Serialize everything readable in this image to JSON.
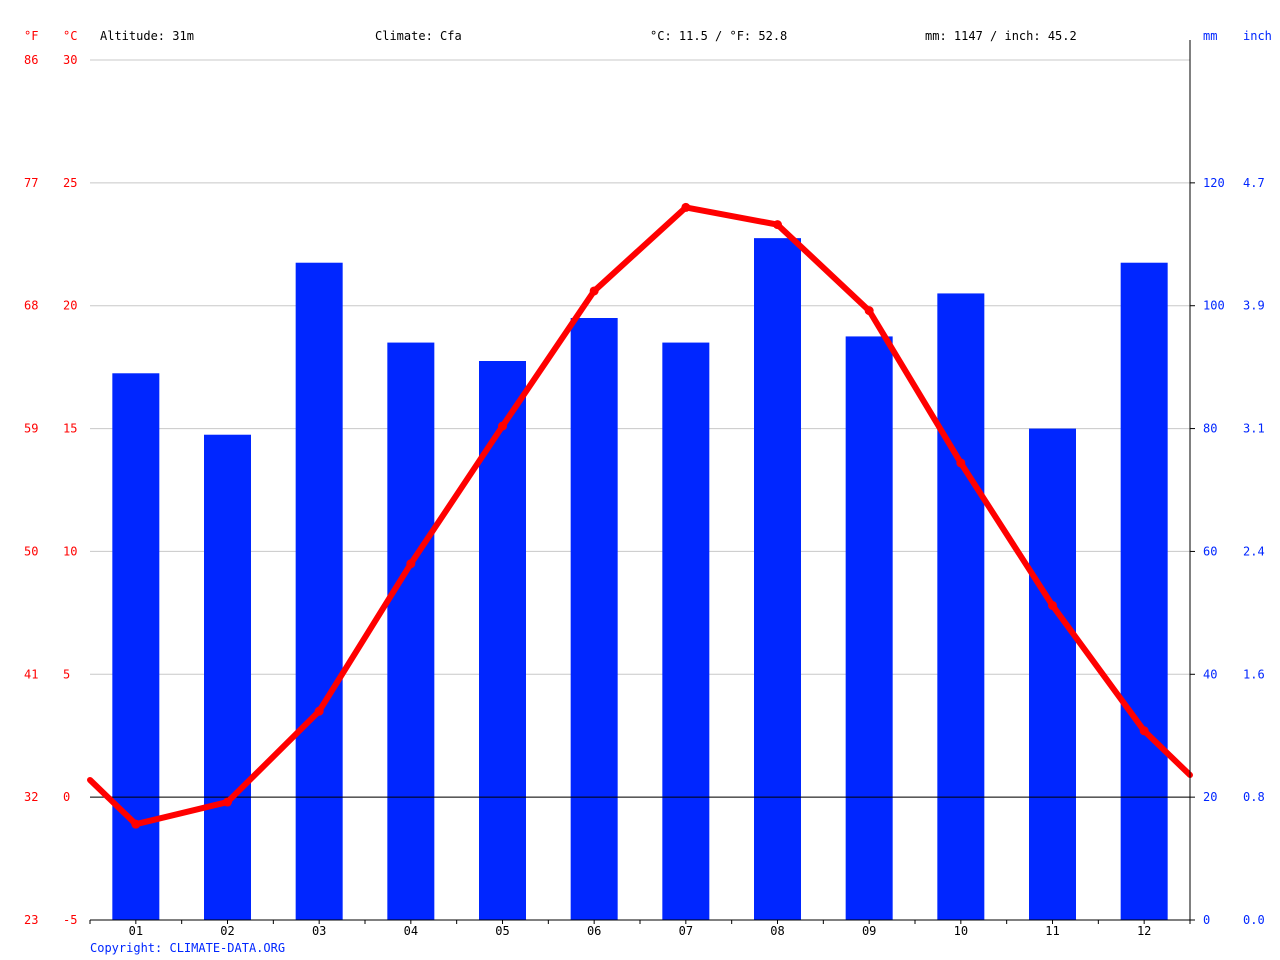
{
  "header": {
    "left_unit_f": "°F",
    "left_unit_c": "°C",
    "altitude": "Altitude: 31m",
    "climate": "Climate: Cfa",
    "avg_temp": "°C: 11.5 / °F: 52.8",
    "precip_total": "mm: 1147 / inch: 45.2",
    "right_unit_mm": "mm",
    "right_unit_inch": "inch"
  },
  "footer": {
    "copyright": "Copyright: CLIMATE-DATA.ORG"
  },
  "colors": {
    "temperature": "#ff0000",
    "precipitation": "#0026ff",
    "gridline": "#c8c8c8",
    "axis": "#000000",
    "left_axis_labels": "#ff0000",
    "right_axis_labels": "#0026ff",
    "copyright": "#0026ff"
  },
  "chart_data": {
    "type": "bar+line",
    "categories": [
      "01",
      "02",
      "03",
      "04",
      "05",
      "06",
      "07",
      "08",
      "09",
      "10",
      "11",
      "12"
    ],
    "temperature_axis": {
      "unit": "°C",
      "ylim": [
        -5,
        30
      ],
      "ticks_c": [
        "-5",
        "0",
        "5",
        "10",
        "15",
        "20",
        "25",
        "30"
      ],
      "ticks_f": [
        "23",
        "32",
        "41",
        "50",
        "59",
        "68",
        "77",
        "86"
      ]
    },
    "precipitation_axis": {
      "unit": "mm",
      "ylim": [
        0,
        140
      ],
      "ticks_mm": [
        "0",
        "20",
        "40",
        "60",
        "80",
        "100",
        "120"
      ],
      "ticks_inch": [
        "0.0",
        "0.8",
        "1.6",
        "2.4",
        "3.1",
        "3.9",
        "4.7"
      ]
    },
    "precipitation_mm": [
      89,
      79,
      107,
      94,
      91,
      98,
      94,
      111,
      95,
      102,
      80,
      107
    ],
    "temperature_c": [
      -1.1,
      -0.2,
      3.5,
      9.5,
      15.1,
      20.6,
      24.0,
      23.3,
      19.8,
      13.6,
      7.8,
      2.7
    ],
    "temperature_edges_c": {
      "start": 0.7,
      "end": 0.9
    },
    "grid": true
  }
}
